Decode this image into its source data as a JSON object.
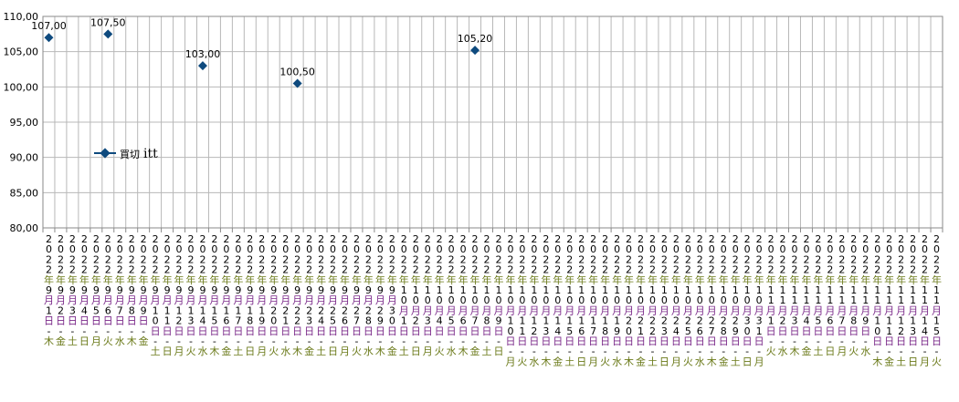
{
  "chart_data": {
    "type": "scatter",
    "title": "",
    "xlabel": "",
    "ylabel": "",
    "ylim": [
      80,
      110
    ],
    "yticks": [
      "80,00",
      "85,00",
      "90,00",
      "95,00",
      "100,00",
      "105,00",
      "110,00"
    ],
    "grid": true,
    "legend_position": "left",
    "categories": [
      "2022年9月1日-木",
      "2022年9月2日-金",
      "2022年9月3日-土",
      "2022年9月4日-日",
      "2022年9月5日-月",
      "2022年9月6日-火",
      "2022年9月7日-水",
      "2022年9月8日-木",
      "2022年9月9日-金",
      "2022年9月10日-土",
      "2022年9月11日-日",
      "2022年9月12日-月",
      "2022年9月13日-火",
      "2022年9月14日-水",
      "2022年9月15日-木",
      "2022年9月16日-金",
      "2022年9月17日-土",
      "2022年9月18日-日",
      "2022年9月19日-月",
      "2022年9月20日-火",
      "2022年9月21日-水",
      "2022年9月22日-木",
      "2022年9月23日-金",
      "2022年9月24日-土",
      "2022年9月25日-日",
      "2022年9月26日-月",
      "2022年9月27日-火",
      "2022年9月28日-水",
      "2022年9月29日-木",
      "2022年9月30日-金",
      "2022年10月1日-土",
      "2022年10月2日-日",
      "2022年10月3日-月",
      "2022年10月4日-火",
      "2022年10月5日-水",
      "2022年10月6日-木",
      "2022年10月7日-金",
      "2022年10月8日-土",
      "2022年10月9日-日",
      "2022年10月10日-月",
      "2022年10月11日-火",
      "2022年10月12日-水",
      "2022年10月13日-木",
      "2022年10月14日-金",
      "2022年10月15日-土",
      "2022年10月16日-日",
      "2022年10月17日-月",
      "2022年10月18日-火",
      "2022年10月19日-水",
      "2022年10月20日-木",
      "2022年10月21日-金",
      "2022年10月22日-土",
      "2022年10月23日-日",
      "2022年10月24日-月",
      "2022年10月25日-火",
      "2022年10月26日-水",
      "2022年10月27日-木",
      "2022年10月28日-金",
      "2022年10月29日-土",
      "2022年10月30日-日",
      "2022年10月31日-月",
      "2022年11月1日-火",
      "2022年11月2日-水",
      "2022年11月3日-木",
      "2022年11月4日-金",
      "2022年11月5日-土",
      "2022年11月6日-日",
      "2022年11月7日-月",
      "2022年11月8日-火",
      "2022年11月9日-水",
      "2022年11月10日-木",
      "2022年11月11日-金",
      "2022年11月12日-土",
      "2022年11月13日-日",
      "2022年11月14日-月",
      "2022年11月15日-火"
    ],
    "series": [
      {
        "name": "買切 itt",
        "points": [
          {
            "x": "2022年9月1日-木",
            "y": 107.0,
            "label": "107,00"
          },
          {
            "x": "2022年9月6日-火",
            "y": 107.5,
            "label": "107,50"
          },
          {
            "x": "2022年9月14日-水",
            "y": 103.0,
            "label": "103,00"
          },
          {
            "x": "2022年9月22日-木",
            "y": 100.5,
            "label": "100,50"
          },
          {
            "x": "2022年10月7日-金",
            "y": 105.2,
            "label": "105,20"
          }
        ]
      }
    ]
  },
  "legend": {
    "prefix": "買切",
    "name": "itt"
  },
  "colors": {
    "series": "#0e4a7e",
    "grid": "#b8b8b8",
    "axis": "#8a8a8a",
    "label_purple": "#7b2a8a",
    "label_olive": "#6b7a1a"
  }
}
